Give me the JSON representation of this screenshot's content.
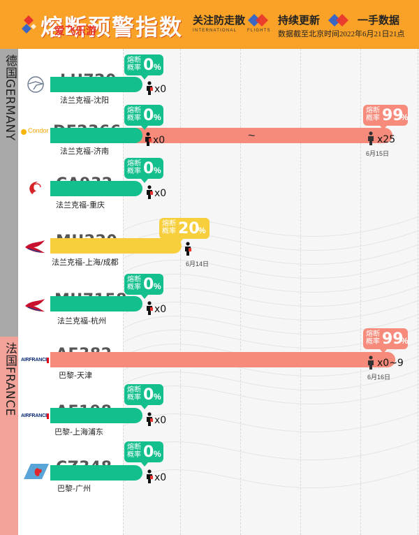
{
  "header": {
    "title": "熔断预警指数",
    "watermark": "爱飞乐游",
    "slogans": [
      {
        "text": "关注防走散",
        "sub": "INTERNATIONAL"
      },
      {
        "text": "持续更新",
        "sub": "FLIGHTS"
      },
      {
        "text": "一手数据",
        "sub": ""
      }
    ],
    "note": "数据截至北京时间2022年6月21日21点",
    "brand_color": "#f9a227"
  },
  "sections": [
    {
      "label": "德国GERMANY",
      "color": "#a9a9a9"
    },
    {
      "label": "法国FRANCE",
      "color": "#f3a29a"
    }
  ],
  "bubble_label": "熔断概率",
  "pct_sign": "%",
  "count_prefix": "x",
  "flights": [
    {
      "flight": "LH720",
      "route": "法兰克福-沈阳",
      "airline_icon": "lufthansa-crane-icon",
      "probability": 0,
      "probability_text": "0",
      "passengers": "0",
      "date": "",
      "level": "green"
    },
    {
      "flight": "DE2366",
      "route": "法兰克福-济南",
      "airline_icon": "condor-logo-icon",
      "probability": 99,
      "probability_text": "99",
      "passengers": "25",
      "date": "6月15日",
      "level": "red",
      "start_probability_text": "0",
      "start_passengers": "0",
      "range_mark": "~"
    },
    {
      "flight": "CA932",
      "route": "法兰克福-重庆",
      "airline_icon": "air-china-phoenix-icon",
      "probability": 0,
      "probability_text": "0",
      "passengers": "0",
      "date": "",
      "level": "green"
    },
    {
      "flight": "MU220",
      "route": "法兰克福-上海/成都",
      "airline_icon": "china-eastern-swallow-icon",
      "probability": 20,
      "probability_text": "20",
      "passengers": "",
      "date": "6月14日",
      "level": "yellow"
    },
    {
      "flight": "MU7158",
      "route": "法兰克福-杭州",
      "airline_icon": "china-eastern-swallow-icon",
      "probability": 0,
      "probability_text": "0",
      "passengers": "0",
      "date": "",
      "level": "green"
    },
    {
      "flight": "AF382",
      "route": "巴黎-天津",
      "airline_icon": "air-france-logo-icon",
      "probability": 99,
      "probability_text": "99",
      "passengers": "0~9",
      "date": "6月16日",
      "level": "red"
    },
    {
      "flight": "AF198",
      "route": "巴黎-上海浦东",
      "airline_icon": "air-france-logo-icon",
      "probability": 0,
      "probability_text": "0",
      "passengers": "0",
      "date": "",
      "level": "green"
    },
    {
      "flight": "CZ348",
      "route": "巴黎-广州",
      "airline_icon": "china-southern-kapok-icon",
      "probability": 0,
      "probability_text": "0",
      "passengers": "0",
      "date": "",
      "level": "green"
    }
  ],
  "airline_text": {
    "condor": "Condor",
    "airfrance": "AIRFRANCE"
  },
  "colors": {
    "green": "#12bf8d",
    "yellow": "#f7cf3d",
    "red": "#f68b7c"
  }
}
